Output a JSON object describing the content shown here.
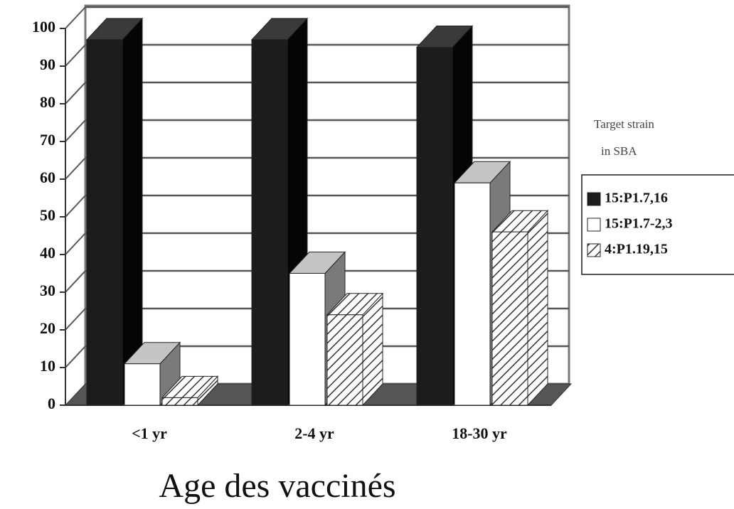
{
  "chart_data": {
    "type": "bar3d",
    "xlabel": "Age des vaccinés",
    "legend_title": [
      "Target strain",
      "in SBA"
    ],
    "categories": [
      "<1 yr",
      "2-4 yr",
      "18-30 yr"
    ],
    "series": [
      {
        "name": "15:P1.7,16",
        "color": "#1c1c1c",
        "values": [
          97,
          97,
          95
        ]
      },
      {
        "name": "15:P1.7-2,3",
        "color": "#ffffff",
        "values": [
          11,
          35,
          59
        ]
      },
      {
        "name": "4:P1.19,15",
        "color": "#7a7a7a",
        "values": [
          2,
          24,
          46
        ]
      }
    ],
    "ylim": [
      0,
      100
    ],
    "yticks": [
      0,
      10,
      20,
      30,
      40,
      50,
      60,
      70,
      80,
      90,
      100
    ],
    "grid": true
  }
}
